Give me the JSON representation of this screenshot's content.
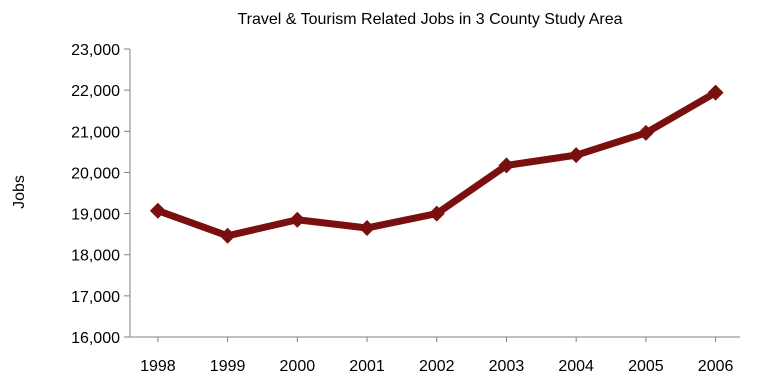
{
  "chart_data": {
    "type": "line",
    "title": "Travel & Tourism Related Jobs in 3 County Study Area",
    "xlabel": "",
    "ylabel": "Jobs",
    "categories": [
      "1998",
      "1999",
      "2000",
      "2001",
      "2002",
      "2003",
      "2004",
      "2005",
      "2006"
    ],
    "series": [
      {
        "values": [
          19070,
          18460,
          18850,
          18650,
          19000,
          20170,
          20420,
          20960,
          21940
        ]
      }
    ],
    "ylim": [
      16000,
      23000
    ],
    "yticks": [
      16000,
      17000,
      18000,
      19000,
      20000,
      21000,
      22000,
      23000
    ],
    "ytick_labels": [
      "16,000",
      "17,000",
      "18,000",
      "19,000",
      "20,000",
      "21,000",
      "22,000",
      "23,000"
    ],
    "grid": false,
    "legend": "none",
    "line_color": "#7a0f0f"
  }
}
